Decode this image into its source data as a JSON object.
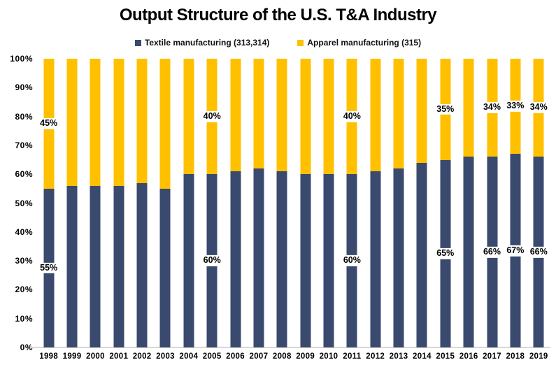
{
  "title": "Output Structure of the U.S. T&A Industry",
  "legend": [
    {
      "label": "Textile manufacturing (313,314)",
      "color": "#3A4A6E"
    },
    {
      "label": "Apparel manufacturing (315)",
      "color": "#FFC000"
    }
  ],
  "y_axis": {
    "tick_labels": [
      "0%",
      "10%",
      "20%",
      "30%",
      "40%",
      "50%",
      "60%",
      "70%",
      "80%",
      "90%",
      "100%"
    ]
  },
  "colors": {
    "textile": "#3A4A6E",
    "apparel": "#FFC000",
    "baseline": "#D8D8D8"
  },
  "chart_data": {
    "type": "bar",
    "stacked": true,
    "title": "Output Structure of the U.S. T&A Industry",
    "xlabel": "",
    "ylabel": "",
    "ylim": [
      0,
      100
    ],
    "grid": false,
    "legend_position": "top",
    "categories": [
      "1998",
      "1999",
      "2000",
      "2001",
      "2002",
      "2003",
      "2004",
      "2005",
      "2006",
      "2007",
      "2008",
      "2009",
      "2010",
      "2011",
      "2012",
      "2013",
      "2014",
      "2015",
      "2016",
      "2017",
      "2018",
      "2019"
    ],
    "series": [
      {
        "name": "Textile manufacturing (313,314)",
        "color": "#3A4A6E",
        "values": [
          55,
          56,
          56,
          56,
          57,
          55,
          60,
          60,
          61,
          62,
          61,
          60,
          60,
          60,
          61,
          62,
          64,
          65,
          66,
          66,
          67,
          66
        ]
      },
      {
        "name": "Apparel manufacturing (315)",
        "color": "#FFC000",
        "values": [
          45,
          44,
          44,
          44,
          43,
          45,
          40,
          40,
          39,
          38,
          39,
          40,
          40,
          40,
          39,
          38,
          36,
          35,
          34,
          34,
          33,
          34
        ]
      }
    ],
    "data_labels": {
      "1998": {
        "textile": "55%",
        "apparel": "45%"
      },
      "2005": {
        "textile": "60%",
        "apparel": "40%"
      },
      "2011": {
        "textile": "60%",
        "apparel": "40%"
      },
      "2015": {
        "textile": "65%",
        "apparel": "35%"
      },
      "2017": {
        "textile": "66%",
        "apparel": "34%"
      },
      "2018": {
        "textile": "67%",
        "apparel": "33%"
      },
      "2019": {
        "textile": "66%",
        "apparel": "34%"
      }
    }
  }
}
